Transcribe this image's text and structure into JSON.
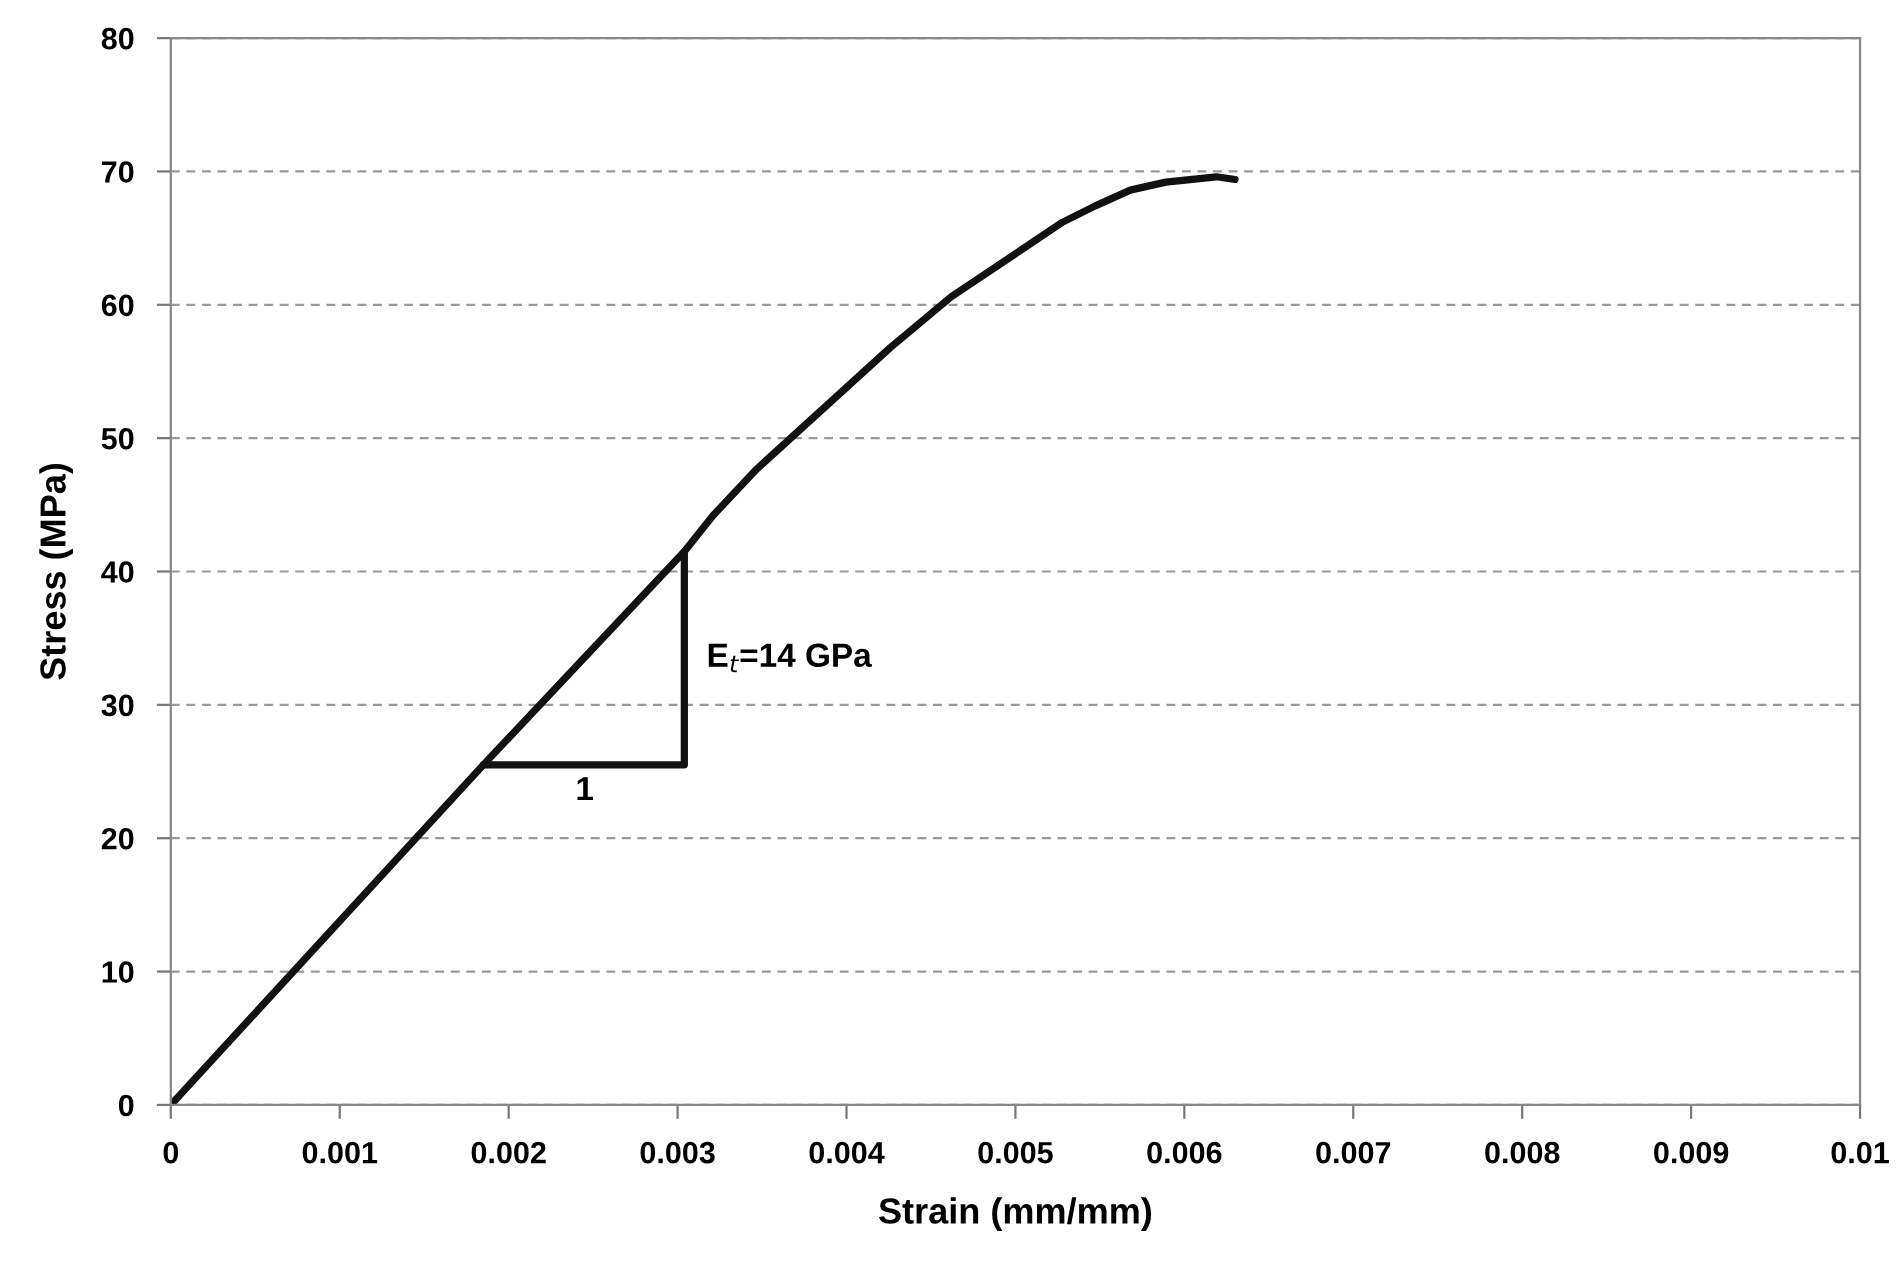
{
  "chart_data": {
    "type": "line",
    "xlabel": "Strain (mm/mm)",
    "ylabel": "Stress (MPa)",
    "series": [
      {
        "color": "#111111",
        "x": [
          0,
          0.00185,
          0.00304,
          0.00321,
          0.00347,
          0.00426,
          0.00462,
          0.00528,
          0.00547,
          0.00568,
          0.00589,
          0.00619,
          0.0063
        ],
        "values": [
          0,
          25.5,
          41.5,
          44.2,
          47.7,
          56.8,
          60.6,
          66.2,
          67.4,
          68.6,
          69.2,
          69.6,
          69.4
        ]
      },
      {
        "color": "#111111",
        "x": [
          0.00185,
          0.00304,
          0.00304
        ],
        "values": [
          25.5,
          25.5,
          41.5
        ]
      }
    ],
    "annotations": [
      {
        "text": "E$_{t}$=14 GPa",
        "x": 0.00304,
        "y": 33.5
      },
      {
        "text": "1",
        "x": 0.00245,
        "y": 25.5
      }
    ],
    "xlim": [
      0,
      0.01
    ],
    "ylim": [
      0,
      80
    ],
    "xticks": [
      0,
      0.001,
      0.002,
      0.003,
      0.004,
      0.005,
      0.006,
      0.007,
      0.008,
      0.009,
      0.01
    ],
    "yticks": [
      0,
      10,
      20,
      30,
      40,
      50,
      60,
      70,
      80
    ],
    "grid": "y",
    "line_style": "solid",
    "marker": "none"
  }
}
